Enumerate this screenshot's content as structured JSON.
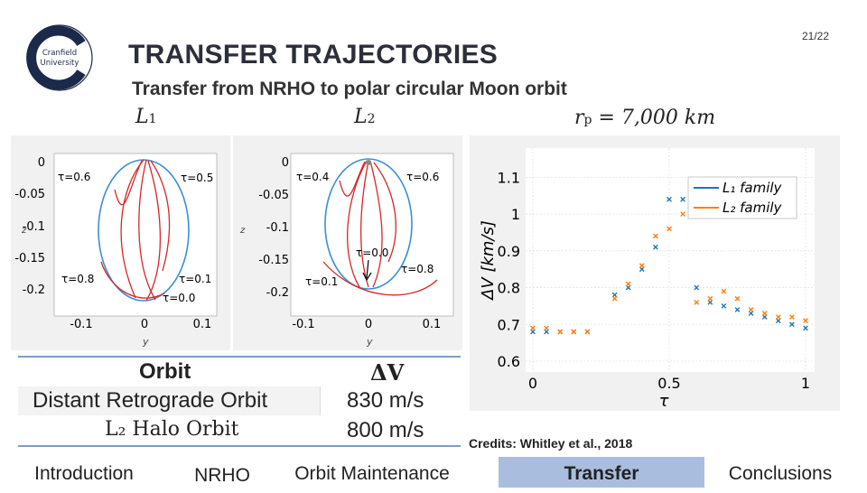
{
  "header": {
    "title": "TRANSFER TRAJECTORIES",
    "slide_number": "21/22",
    "subtitle": "Transfer from NRHO to polar circular Moon orbit",
    "logo": {
      "icon": "cranfield-logo-icon",
      "text_line1": "Cranfield",
      "text_line2": "University",
      "color": "#1b2a4a"
    }
  },
  "labels": {
    "left_plot": "L",
    "left_plot_sub": "1",
    "right_plot": "L",
    "right_plot_sub": "2",
    "rp_label": "r",
    "rp_sub": "p",
    "rp_value": "= 7,000 km"
  },
  "trajectory_plots": [
    {
      "xlabel": "y",
      "ylabel": "z",
      "xticks": [
        "-0.1",
        "0",
        "0.1"
      ],
      "yticks": [
        "0",
        "-0.05",
        "-0.1",
        "-0.15",
        "-0.2"
      ],
      "annotations": [
        "τ=0.6",
        "τ=0.5",
        "τ=0.8",
        "τ=0.1",
        "τ=0.0"
      ]
    },
    {
      "xlabel": "y",
      "ylabel": "z",
      "xticks": [
        "-0.1",
        "0",
        "0.1"
      ],
      "yticks": [
        "0",
        "-0.05",
        "-0.1",
        "-0.15",
        "-0.2"
      ],
      "annotations": [
        "τ=0.4",
        "τ=0.6",
        "τ=0.0",
        "τ=0.8",
        "τ=0.1"
      ]
    }
  ],
  "chart_data": {
    "type": "scatter",
    "xlabel": "τ",
    "ylabel": "ΔV [km/s]",
    "xlim": [
      0,
      1
    ],
    "ylim": [
      0.6,
      1.15
    ],
    "xticks": [
      "0",
      "0.5",
      "1"
    ],
    "yticks": [
      "0.6",
      "0.7",
      "0.8",
      "0.9",
      "1",
      "1.1"
    ],
    "grid": true,
    "legend_position": "top-right",
    "series": [
      {
        "name": "L₁ family",
        "color": "#1f77b4",
        "points": [
          [
            0.0,
            0.68
          ],
          [
            0.05,
            0.68
          ],
          [
            0.1,
            0.68
          ],
          [
            0.15,
            0.68
          ],
          [
            0.2,
            0.68
          ],
          [
            0.3,
            0.78
          ],
          [
            0.35,
            0.8
          ],
          [
            0.4,
            0.85
          ],
          [
            0.45,
            0.91
          ],
          [
            0.5,
            1.04
          ],
          [
            0.55,
            1.04
          ],
          [
            0.6,
            0.8
          ],
          [
            0.65,
            0.76
          ],
          [
            0.7,
            0.75
          ],
          [
            0.75,
            0.74
          ],
          [
            0.8,
            0.73
          ],
          [
            0.85,
            0.72
          ],
          [
            0.9,
            0.71
          ],
          [
            0.95,
            0.7
          ],
          [
            1.0,
            0.69
          ]
        ]
      },
      {
        "name": "L₂ family",
        "color": "#ff7f0e",
        "points": [
          [
            0.0,
            0.69
          ],
          [
            0.05,
            0.69
          ],
          [
            0.1,
            0.68
          ],
          [
            0.15,
            0.68
          ],
          [
            0.2,
            0.68
          ],
          [
            0.3,
            0.77
          ],
          [
            0.35,
            0.81
          ],
          [
            0.4,
            0.86
          ],
          [
            0.45,
            0.94
          ],
          [
            0.5,
            0.96
          ],
          [
            0.55,
            1.0
          ],
          [
            0.6,
            0.76
          ],
          [
            0.65,
            0.77
          ],
          [
            0.7,
            0.79
          ],
          [
            0.75,
            0.77
          ],
          [
            0.8,
            0.74
          ],
          [
            0.85,
            0.73
          ],
          [
            0.9,
            0.72
          ],
          [
            0.95,
            0.72
          ],
          [
            1.0,
            0.71
          ]
        ]
      }
    ]
  },
  "table": {
    "header": [
      "Orbit",
      "ΔV"
    ],
    "rows": [
      [
        "Distant Retrograde Orbit",
        "830 m/s"
      ],
      [
        "L₂ Halo Orbit",
        "800 m/s"
      ]
    ]
  },
  "credits": "Credits: Whitley et al., 2018",
  "nav": {
    "items": [
      "Introduction",
      "NRHO",
      "Orbit Maintenance",
      "Transfer",
      "Conclusions"
    ],
    "active": "Transfer",
    "active_color": "#a9bede"
  },
  "colors": {
    "orbit_blue": "#3a8fd6",
    "transfer_red": "#d62728"
  }
}
